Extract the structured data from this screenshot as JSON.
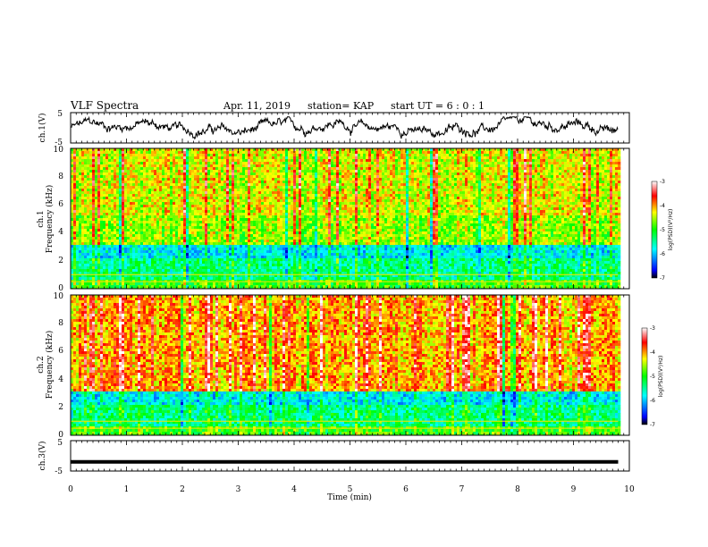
{
  "header": {
    "title": "VLF Spectra",
    "date": "Apr. 11, 2019",
    "station": "station= KAP",
    "start": "start UT = 6 : 0 : 1"
  },
  "chart_data": [
    {
      "type": "line",
      "ylabel": "ch.1(V)",
      "ylim": [
        -5,
        5
      ],
      "ytick_labels": [
        "5",
        "-5"
      ],
      "x_range_min": [
        0,
        9.8
      ],
      "description_of_signal": "noisy waveform fluctuating roughly between -3 and 3 V",
      "grid": false
    },
    {
      "type": "heatmap",
      "ylabel_line1": "ch.1",
      "ylabel_line2": "Frequency (kHz)",
      "ylim": [
        0,
        10
      ],
      "ytick_labels": [
        "0",
        "2",
        "4",
        "6",
        "8",
        "10"
      ],
      "x_range_min": [
        0,
        9.8
      ],
      "colorbar": {
        "label": "log(PSD)(V²/Hz)",
        "range": [
          -7,
          -3
        ],
        "tick_labels": [
          "-3",
          "-4",
          "-5",
          "-6",
          "-7"
        ],
        "colors": [
          "#000000",
          "#0000ff",
          "#00ffff",
          "#00ff00",
          "#ffff00",
          "#ff0000",
          "#ffffff"
        ]
      }
    },
    {
      "type": "heatmap",
      "ylabel_line1": "ch.2",
      "ylabel_line2": "Frequency (kHz)",
      "ylim": [
        0,
        10
      ],
      "ytick_labels": [
        "0",
        "2",
        "4",
        "6",
        "8",
        "10"
      ],
      "x_range_min": [
        0,
        9.8
      ],
      "colorbar": {
        "label": "log(PSD)(V²/Hz)",
        "range": [
          -7,
          -3
        ],
        "tick_labels": [
          "-3",
          "-4",
          "-5",
          "-6",
          "-7"
        ],
        "colors": [
          "#000000",
          "#0000ff",
          "#00ffff",
          "#00ff00",
          "#ffff00",
          "#ff0000",
          "#ffffff"
        ]
      }
    },
    {
      "type": "line",
      "ylabel": "ch.3(V)",
      "ylim": [
        -5,
        5
      ],
      "ytick_labels": [
        "5",
        "-5"
      ],
      "x_range_min": [
        0,
        9.8
      ],
      "constant_value": -2
    }
  ],
  "xaxis": {
    "label": "Time (min)",
    "xlim": [
      0,
      10
    ],
    "tick_labels": [
      "0",
      "1",
      "2",
      "3",
      "4",
      "5",
      "6",
      "7",
      "8",
      "9",
      "10"
    ]
  }
}
